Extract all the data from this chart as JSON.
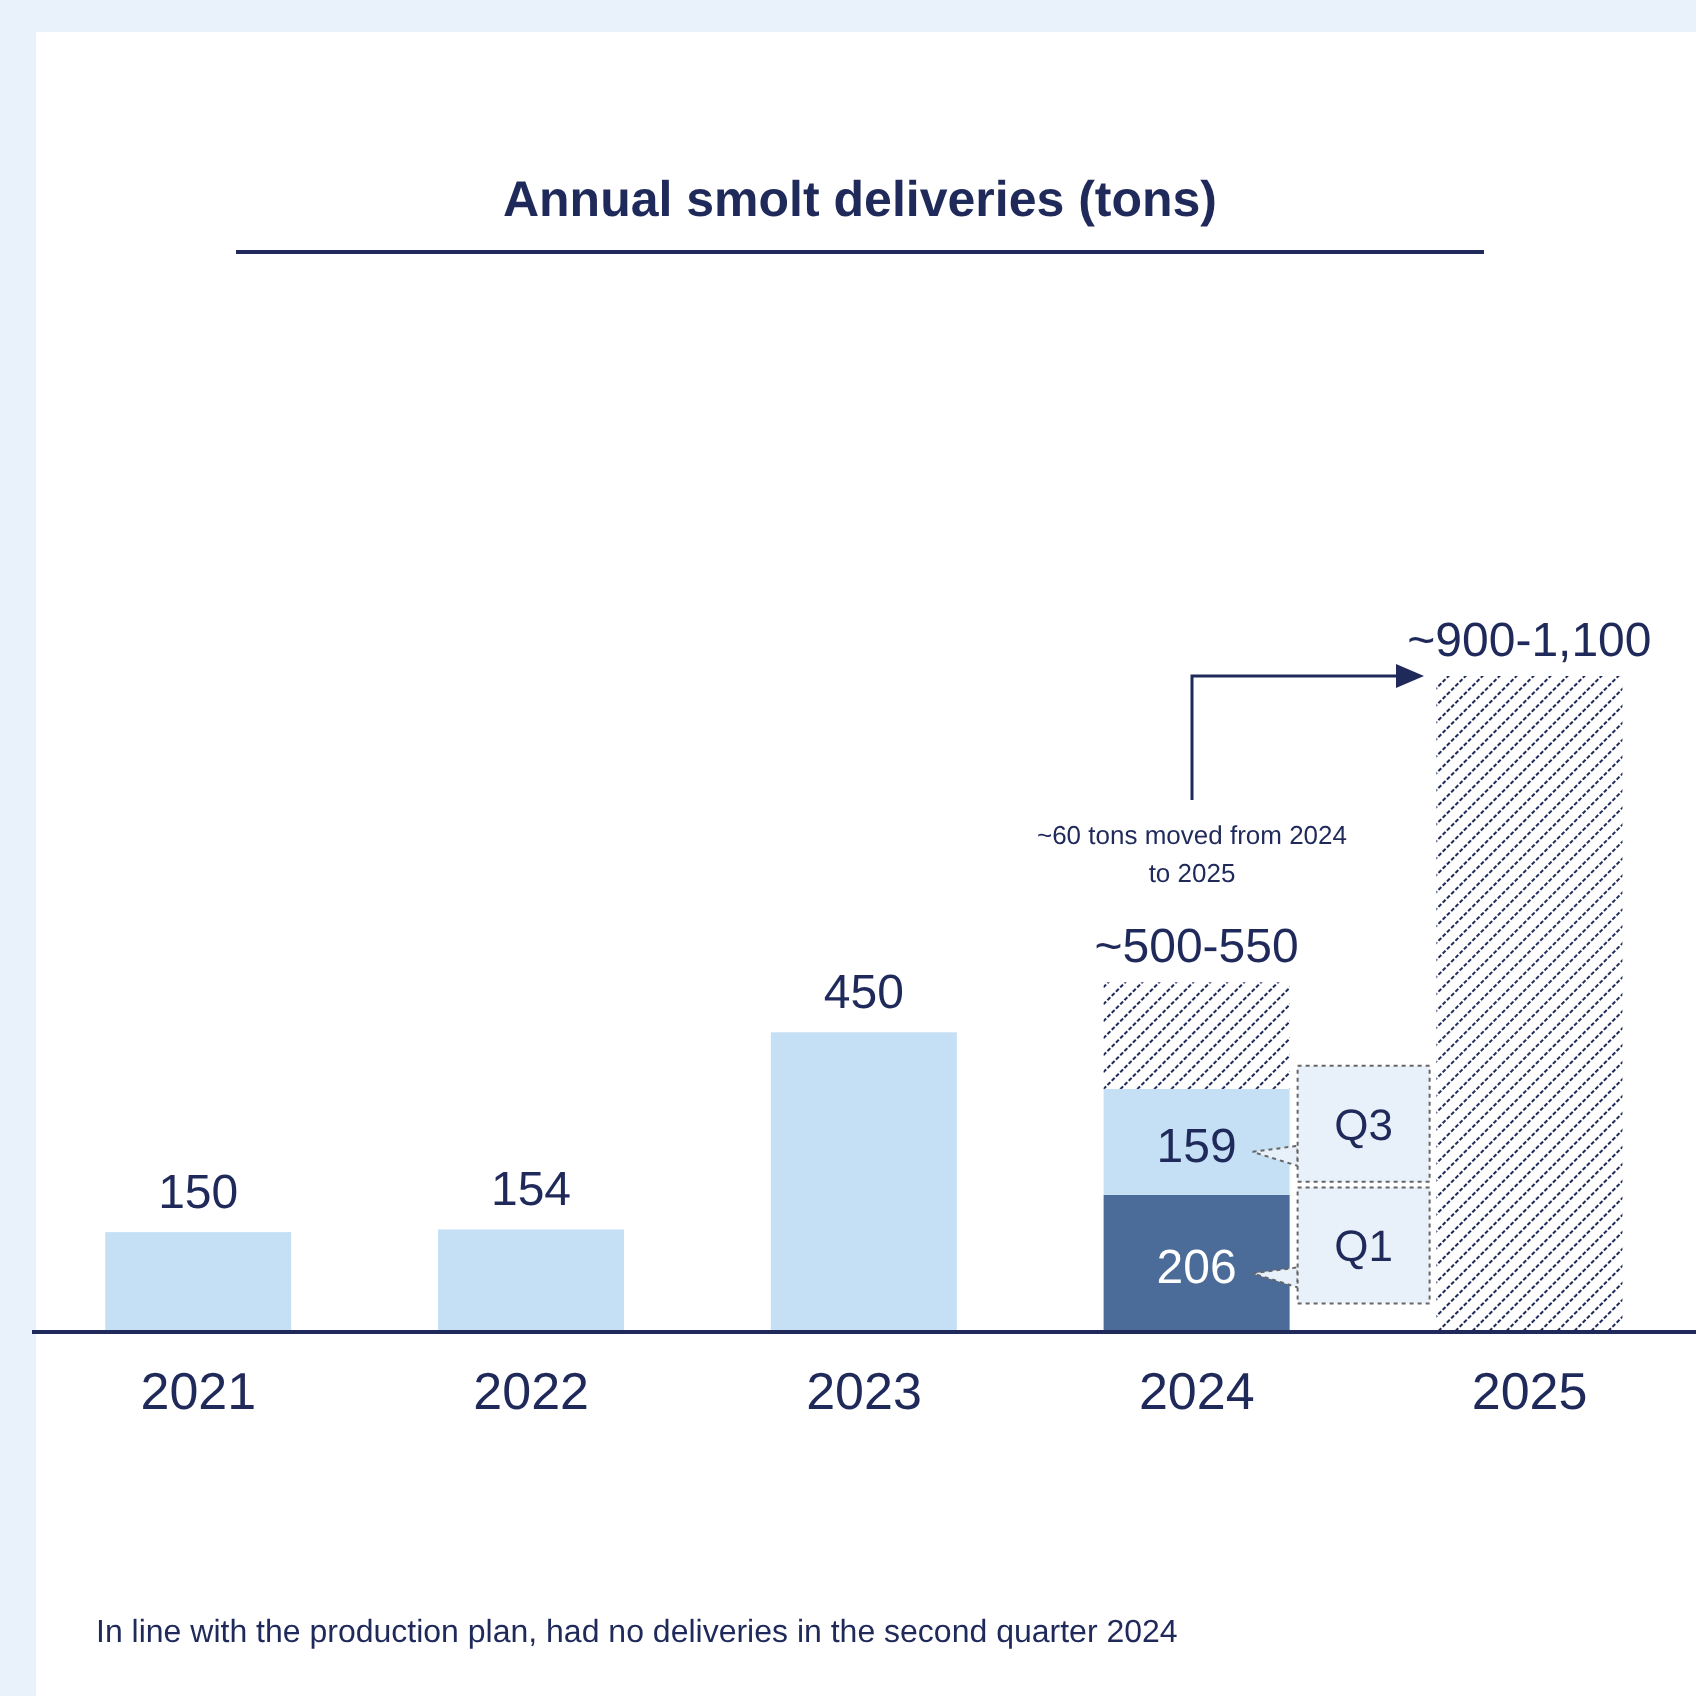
{
  "chart_data": {
    "type": "bar",
    "title": "Annual smolt deliveries (tons)",
    "categories": [
      "2021",
      "2022",
      "2023",
      "2024",
      "2025"
    ],
    "stacked": true,
    "series": [
      {
        "color": "#c5e0f5",
        "values": [
          150,
          154,
          450,
          null,
          null
        ],
        "value_labels": [
          "150",
          "154",
          "450",
          null,
          null
        ]
      },
      {
        "name": "Q1",
        "color": "#4b6b98",
        "values": [
          null,
          null,
          null,
          206,
          null
        ],
        "value_labels": [
          null,
          null,
          null,
          "206",
          null
        ]
      },
      {
        "name": "Q3",
        "color": "#c5e0f5",
        "values": [
          null,
          null,
          null,
          159,
          null
        ],
        "value_labels": [
          null,
          null,
          null,
          "159",
          null
        ]
      },
      {
        "color": "#1f2a5a",
        "values": [
          null,
          null,
          null,
          160,
          985
        ]
      }
    ],
    "totals": [
      null,
      null,
      null,
      "~500-550",
      "~900-1,100"
    ],
    "annotations": [
      "~60 tons moved from 2024 to 2025",
      "In line with the production plan, had no deliveries in the second quarter 2024"
    ],
    "orientation": "vertical"
  }
}
